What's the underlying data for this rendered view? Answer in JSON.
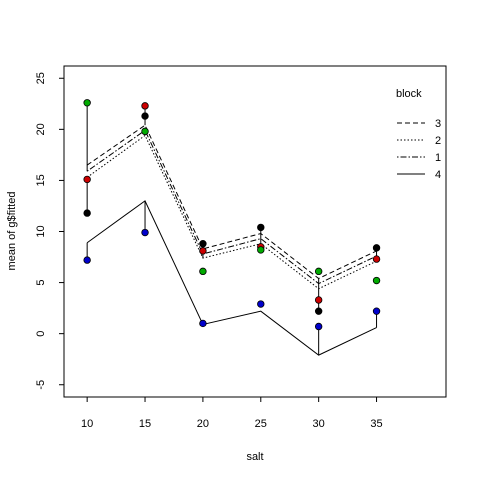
{
  "chart_data": {
    "type": "line",
    "title": "",
    "xlabel": "salt",
    "ylabel": "mean of  g$fitted",
    "x": [
      10,
      15,
      20,
      25,
      30,
      35
    ],
    "x_ticks": [
      "10",
      "15",
      "20",
      "25",
      "30",
      "35"
    ],
    "y_ticks": [
      "-5",
      "0",
      "5",
      "10",
      "15",
      "20",
      "25"
    ],
    "xlim": [
      8,
      41
    ],
    "ylim": [
      -6.2,
      26.2
    ],
    "grid": false,
    "legend": {
      "title": "block",
      "placement": "top-right"
    },
    "series": [
      {
        "name": "3",
        "dash": "dashed",
        "values": [
          16.5,
          20.4,
          8.3,
          9.8,
          5.4,
          8.1
        ]
      },
      {
        "name": "2",
        "dash": "dotted",
        "values": [
          15.3,
          19.4,
          7.4,
          8.8,
          4.4,
          7.1
        ]
      },
      {
        "name": "1",
        "dash": "dotdash",
        "values": [
          15.9,
          19.9,
          7.8,
          9.3,
          4.9,
          7.6
        ]
      },
      {
        "name": "4",
        "dash": "solid",
        "values": [
          8.9,
          13.0,
          0.9,
          2.2,
          -2.1,
          0.6
        ]
      }
    ],
    "observations": [
      {
        "x": 10,
        "y": 22.6,
        "color": "#00aa00"
      },
      {
        "x": 10,
        "y": 15.1,
        "color": "#cc0000"
      },
      {
        "x": 10,
        "y": 11.8,
        "color": "#000000"
      },
      {
        "x": 10,
        "y": 7.2,
        "color": "#0000cc"
      },
      {
        "x": 15,
        "y": 22.3,
        "color": "#cc0000"
      },
      {
        "x": 15,
        "y": 21.3,
        "color": "#000000"
      },
      {
        "x": 15,
        "y": 19.8,
        "color": "#00aa00"
      },
      {
        "x": 15,
        "y": 9.9,
        "color": "#0000cc"
      },
      {
        "x": 20,
        "y": 8.8,
        "color": "#000000"
      },
      {
        "x": 20,
        "y": 8.1,
        "color": "#cc0000"
      },
      {
        "x": 20,
        "y": 6.1,
        "color": "#00aa00"
      },
      {
        "x": 20,
        "y": 1.0,
        "color": "#0000cc"
      },
      {
        "x": 25,
        "y": 10.4,
        "color": "#000000"
      },
      {
        "x": 25,
        "y": 8.5,
        "color": "#cc0000"
      },
      {
        "x": 25,
        "y": 8.2,
        "color": "#00aa00"
      },
      {
        "x": 25,
        "y": 2.9,
        "color": "#0000cc"
      },
      {
        "x": 30,
        "y": 6.1,
        "color": "#00aa00"
      },
      {
        "x": 30,
        "y": 3.3,
        "color": "#cc0000"
      },
      {
        "x": 30,
        "y": 2.2,
        "color": "#000000"
      },
      {
        "x": 30,
        "y": 0.7,
        "color": "#0000cc"
      },
      {
        "x": 35,
        "y": 8.4,
        "color": "#000000"
      },
      {
        "x": 35,
        "y": 7.3,
        "color": "#cc0000"
      },
      {
        "x": 35,
        "y": 5.2,
        "color": "#00aa00"
      },
      {
        "x": 35,
        "y": 2.2,
        "color": "#0000cc"
      }
    ],
    "residual_segments": [
      {
        "x": 10,
        "from": 22.6,
        "to": 15.9
      },
      {
        "x": 10,
        "from": 11.8,
        "to": 15.1
      },
      {
        "x": 10,
        "from": 7.2,
        "to": 8.9
      },
      {
        "x": 15,
        "from": 22.3,
        "to": 20.4
      },
      {
        "x": 15,
        "from": 9.9,
        "to": 13.0
      },
      {
        "x": 20,
        "from": 8.8,
        "to": 7.4
      },
      {
        "x": 25,
        "from": 10.4,
        "to": 8.8
      },
      {
        "x": 30,
        "from": 0.7,
        "to": -2.1
      },
      {
        "x": 30,
        "from": 2.2,
        "to": 5.4
      },
      {
        "x": 35,
        "from": 2.2,
        "to": 0.6
      },
      {
        "x": 35,
        "from": 8.4,
        "to": 7.1
      }
    ]
  }
}
